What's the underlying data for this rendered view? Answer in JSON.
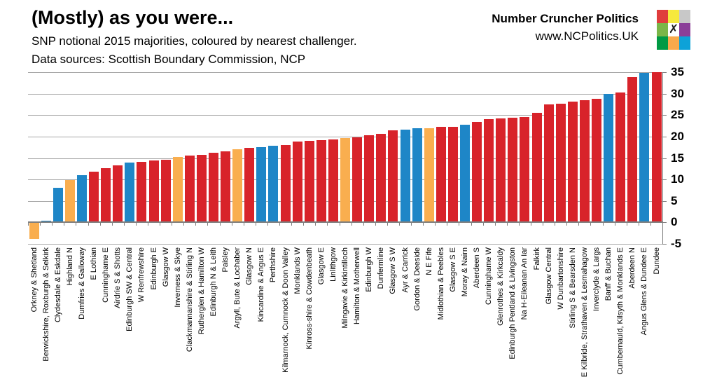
{
  "branding": {
    "name": "Number Cruncher Politics",
    "url": "www.NCPolitics.UK",
    "logo_x_mark": "✗",
    "logo_grid_colors": [
      "#e03c3c",
      "#f6e93d",
      "#c8c8c8",
      "#7ab648",
      "#ffffff",
      "#8b3f98",
      "#009a44",
      "#f9a94b",
      "#0da2d8"
    ]
  },
  "chart_data": {
    "type": "bar",
    "title": "(Mostly) as you were...",
    "subtitle": "SNP notional 2015 majorities, coloured by nearest challenger.",
    "sources_note": "Data sources: Scottish Boundary Commission, NCP",
    "grid": true,
    "legend_position": "none",
    "y_axis": {
      "min": -5,
      "max": 35,
      "step": 5,
      "side": "right",
      "tick_labels": [
        "35",
        "30",
        "25",
        "20",
        "15",
        "10",
        "5",
        "0",
        "-5"
      ]
    },
    "challenger_colors": {
      "lab": "#d8232a",
      "con": "#1e86c7",
      "ld": "#f9ae4f"
    },
    "categories": [
      "Orkney & Shetland",
      "Berwickshire, Roxburgh & Selkirk",
      "Clydesdale & Eskdale",
      "Highland N",
      "Dumfries & Galloway",
      "E Lothian",
      "Cunninghame E",
      "Airdrie S & Shotts",
      "Edinburgh SW & Central",
      "W Renfrewshire",
      "Edinburgh E",
      "Glasgow W",
      "Inverness & Skye",
      "Clackmannanshire & Stirling N",
      "Rutherglen & Hamilton W",
      "Edinburgh N & Leith",
      "Paisley",
      "Argyll, Bute & Lochaber",
      "Glasgow N",
      "Kincardine & Angus E",
      "Perthshire",
      "Kilmarnock, Cumnock & Doon Valley",
      "Monklands W",
      "Kinross-shire & Cowdenbeath",
      "Glasgow E",
      "Linlithgow",
      "Milngavie & Kirkintilloch",
      "Hamilton & Motherwell",
      "Edinburgh W",
      "Dunfermline",
      "Glasgow S W",
      "Ayr & Carrick",
      "Gordon & Deeside",
      "N E Fife",
      "Midlothian & Peebles",
      "Glasgow S E",
      "Moray & Nairn",
      "Aberdeen S",
      "Cunninghame W",
      "Glenrothes & Kirkcaldy",
      "Edinburgh Pentland & Livingston",
      "Na H-Eileanan An Iar",
      "Falkirk",
      "Glasgow Central",
      "W Dunbartonshire",
      "Stirling S & Bearsden N",
      "E Kilbride, Strathaven & Lesmahagow",
      "Inverclyde & Largs",
      "Banff & Buchan",
      "Cumbernauld, Kilsyth & Monklands E",
      "Aberdeen N",
      "Angus Glens & Dundee E",
      "Dundee"
    ],
    "values": [
      -3.8,
      0.4,
      8.0,
      9.8,
      11.0,
      11.8,
      12.7,
      13.3,
      13.9,
      14.1,
      14.4,
      14.6,
      15.2,
      15.5,
      15.8,
      16.3,
      16.6,
      17.1,
      17.4,
      17.6,
      17.8,
      18.0,
      18.8,
      19.0,
      19.2,
      19.4,
      19.6,
      19.8,
      20.3,
      20.6,
      21.4,
      21.6,
      21.9,
      22.0,
      22.2,
      22.3,
      22.8,
      23.4,
      24.0,
      24.2,
      24.4,
      24.6,
      25.6,
      27.5,
      27.7,
      28.1,
      28.4,
      28.8,
      30.0,
      30.3,
      33.8,
      34.9,
      35.0
    ],
    "challengers": [
      "ld",
      "con",
      "con",
      "ld",
      "con",
      "lab",
      "lab",
      "lab",
      "con",
      "lab",
      "lab",
      "lab",
      "ld",
      "lab",
      "lab",
      "lab",
      "lab",
      "ld",
      "lab",
      "con",
      "con",
      "lab",
      "lab",
      "lab",
      "lab",
      "lab",
      "ld",
      "lab",
      "lab",
      "lab",
      "lab",
      "con",
      "con",
      "ld",
      "lab",
      "lab",
      "con",
      "lab",
      "lab",
      "lab",
      "lab",
      "lab",
      "lab",
      "lab",
      "lab",
      "lab",
      "lab",
      "lab",
      "con",
      "lab",
      "lab",
      "con",
      "lab"
    ]
  }
}
